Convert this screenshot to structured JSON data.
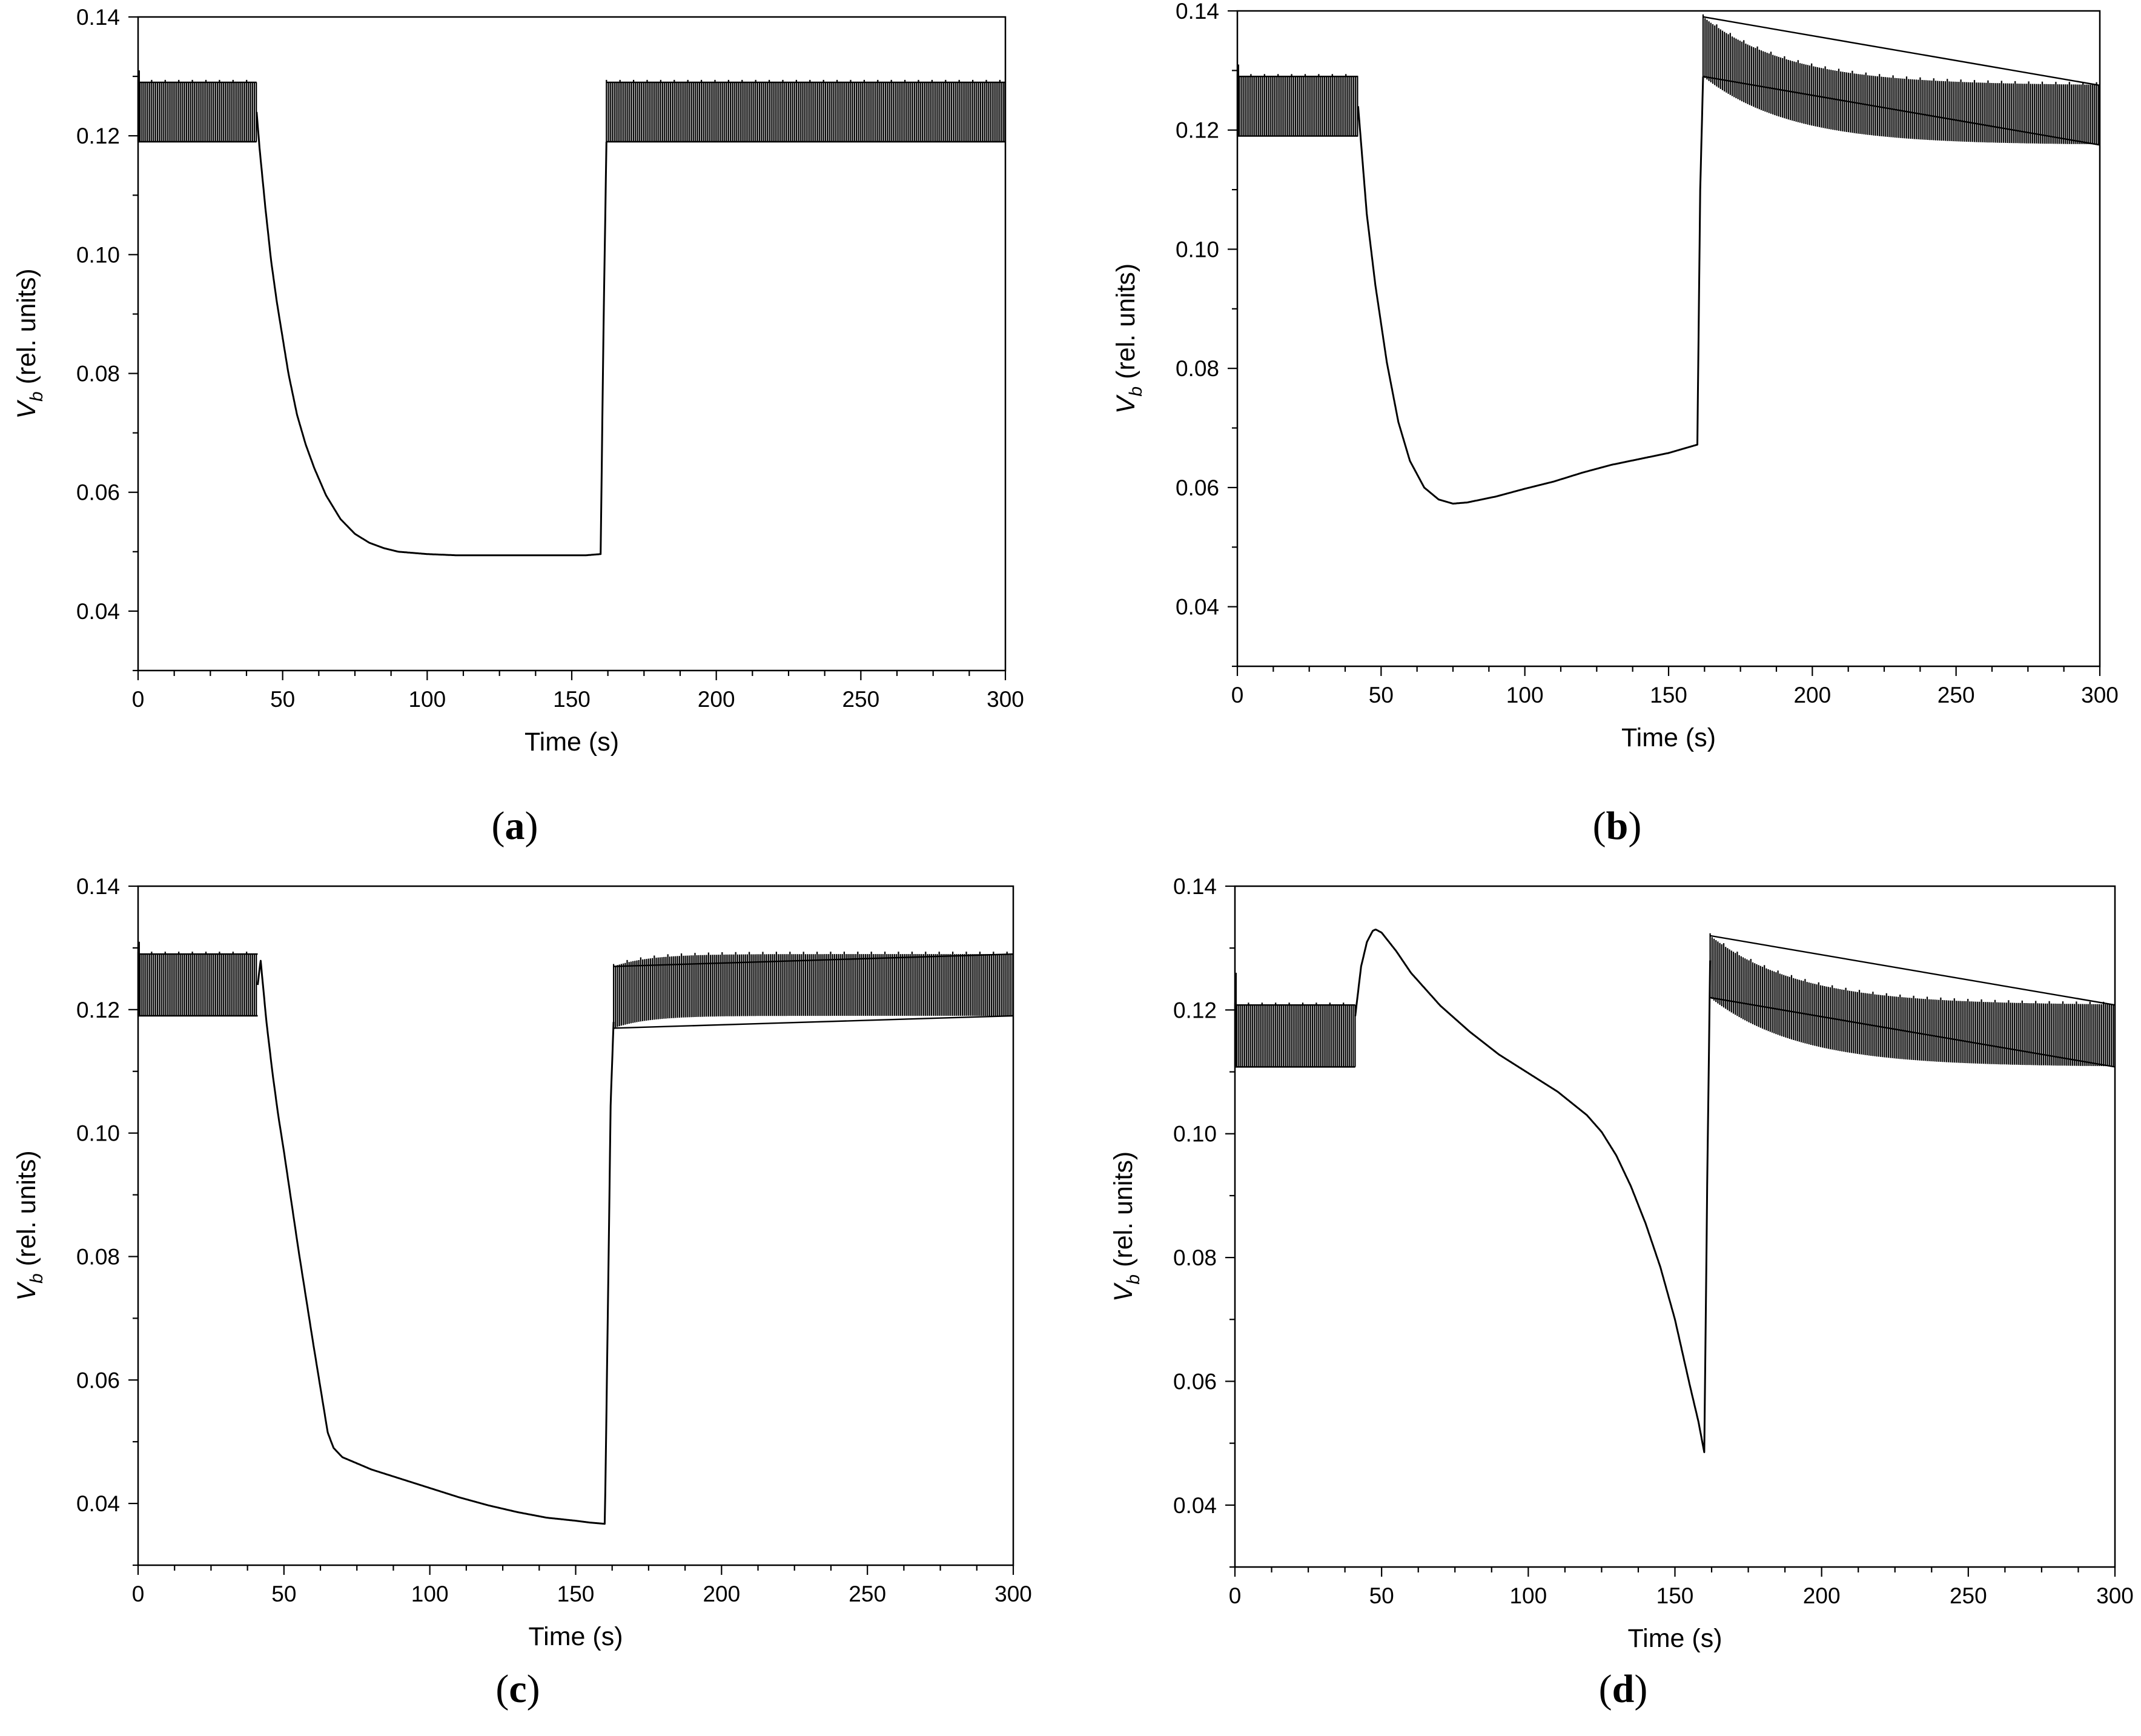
{
  "figure": {
    "panels_count": 4
  },
  "chart_data": [
    {
      "id": "a",
      "type": "line",
      "panel_label_open": "(",
      "panel_label_letter": "a",
      "panel_label_close": ")",
      "xlabel": "Time (s)",
      "ylabel_main": "V",
      "ylabel_sub": "b",
      "ylabel_rest": " (rel. units)",
      "xlim": [
        0,
        300
      ],
      "ylim": [
        0.03,
        0.14
      ],
      "xticks": [
        0,
        50,
        100,
        150,
        200,
        250,
        300
      ],
      "xtick_labels": [
        "0",
        "50",
        "100",
        "150",
        "200",
        "250",
        "300"
      ],
      "yticks": [
        0.04,
        0.06,
        0.08,
        0.1,
        0.12,
        0.14
      ],
      "ytick_labels": [
        "0.04",
        "0.06",
        "0.08",
        "0.10",
        "0.12",
        "0.14"
      ],
      "series": [
        {
          "name": "Vb",
          "oscillating_segments": [
            {
              "x_start": 0,
              "x_end": 41,
              "center": 0.124,
              "center_end": 0.124,
              "amplitude": 0.005,
              "spike_x": 0,
              "spike_y": 0.131
            },
            {
              "x_start": 162,
              "x_end": 300,
              "center": 0.124,
              "center_end": 0.124,
              "amplitude": 0.005
            }
          ],
          "smooth": {
            "x": [
              41,
              42,
              44,
              46,
              48,
              50,
              52,
              55,
              58,
              61,
              65,
              70,
              75,
              80,
              85,
              90,
              100,
              110,
              120,
              130,
              140,
              150,
              155,
              160,
              161,
              162
            ],
            "y": [
              0.124,
              0.118,
              0.108,
              0.099,
              0.092,
              0.086,
              0.08,
              0.073,
              0.068,
              0.064,
              0.0595,
              0.0555,
              0.053,
              0.0515,
              0.0506,
              0.05,
              0.0496,
              0.0494,
              0.0494,
              0.0494,
              0.0494,
              0.0494,
              0.0494,
              0.0496,
              0.088,
              0.119
            ]
          }
        }
      ]
    },
    {
      "id": "b",
      "type": "line",
      "panel_label_open": "(",
      "panel_label_letter": "b",
      "panel_label_close": ")",
      "xlabel": "Time (s)",
      "ylabel_main": "V",
      "ylabel_sub": "b",
      "ylabel_rest": " (rel. units)",
      "xlim": [
        0,
        300
      ],
      "ylim": [
        0.03,
        0.14
      ],
      "xticks": [
        0,
        50,
        100,
        150,
        200,
        250,
        300
      ],
      "xtick_labels": [
        "0",
        "50",
        "100",
        "150",
        "200",
        "250",
        "300"
      ],
      "yticks": [
        0.04,
        0.06,
        0.08,
        0.1,
        0.12,
        0.14
      ],
      "ytick_labels": [
        "0.04",
        "0.06",
        "0.08",
        "0.10",
        "0.12",
        "0.14"
      ],
      "series": [
        {
          "name": "Vb",
          "oscillating_segments": [
            {
              "x_start": 0,
              "x_end": 42,
              "center": 0.124,
              "center_end": 0.124,
              "amplitude": 0.005,
              "spike_x": 0,
              "spike_y": 0.131
            },
            {
              "x_start": 162,
              "x_end": 300,
              "center": 0.134,
              "center_end": 0.1225,
              "amplitude": 0.005,
              "decay": 30
            }
          ],
          "smooth": {
            "x": [
              42,
              43,
              45,
              48,
              52,
              56,
              60,
              65,
              70,
              75,
              80,
              90,
              100,
              110,
              120,
              130,
              140,
              150,
              155,
              160,
              161,
              162
            ],
            "y": [
              0.124,
              0.118,
              0.106,
              0.094,
              0.081,
              0.071,
              0.0645,
              0.06,
              0.058,
              0.0573,
              0.0575,
              0.0585,
              0.0598,
              0.061,
              0.0625,
              0.0638,
              0.0648,
              0.0658,
              0.0665,
              0.0672,
              0.11,
              0.129
            ]
          }
        }
      ]
    },
    {
      "id": "c",
      "type": "line",
      "panel_label_open": "(",
      "panel_label_letter": "c",
      "panel_label_close": ")",
      "xlabel": "Time (s)",
      "ylabel_main": "V",
      "ylabel_sub": "b",
      "ylabel_rest": " (rel. units)",
      "xlim": [
        0,
        300
      ],
      "ylim": [
        0.03,
        0.14
      ],
      "xticks": [
        0,
        50,
        100,
        150,
        200,
        250,
        300
      ],
      "xtick_labels": [
        "0",
        "50",
        "100",
        "150",
        "200",
        "250",
        "300"
      ],
      "yticks": [
        0.04,
        0.06,
        0.08,
        0.1,
        0.12,
        0.14
      ],
      "ytick_labels": [
        "0.04",
        "0.06",
        "0.08",
        "0.10",
        "0.12",
        "0.14"
      ],
      "series": [
        {
          "name": "Vb",
          "oscillating_segments": [
            {
              "x_start": 0,
              "x_end": 41,
              "center": 0.124,
              "center_end": 0.124,
              "amplitude": 0.005,
              "spike_x": 0,
              "spike_y": 0.131
            },
            {
              "x_start": 163,
              "x_end": 300,
              "center": 0.122,
              "center_end": 0.124,
              "amplitude": 0.005,
              "decay": 12
            }
          ],
          "smooth": {
            "x": [
              41,
              42,
              44,
              46,
              48,
              50,
              55,
              60,
              65,
              67,
              70,
              80,
              90,
              100,
              110,
              120,
              130,
              140,
              150,
              155,
              160,
              161,
              162,
              163
            ],
            "y": [
              0.124,
              0.128,
              0.118,
              0.11,
              0.103,
              0.097,
              0.081,
              0.066,
              0.0515,
              0.049,
              0.0475,
              0.0455,
              0.044,
              0.0425,
              0.041,
              0.0397,
              0.0386,
              0.0377,
              0.0372,
              0.0369,
              0.0367,
              0.07,
              0.105,
              0.118
            ]
          }
        }
      ]
    },
    {
      "id": "d",
      "type": "line",
      "panel_label_open": "(",
      "panel_label_letter": "d",
      "panel_label_close": ")",
      "xlabel": "Time (s)",
      "ylabel_main": "V",
      "ylabel_sub": "b",
      "ylabel_rest": " (rel. units)",
      "xlim": [
        0,
        300
      ],
      "ylim": [
        0.03,
        0.14
      ],
      "xticks": [
        0,
        50,
        100,
        150,
        200,
        250,
        300
      ],
      "xtick_labels": [
        "0",
        "50",
        "100",
        "150",
        "200",
        "250",
        "300"
      ],
      "yticks": [
        0.04,
        0.06,
        0.08,
        0.1,
        0.12,
        0.14
      ],
      "ytick_labels": [
        "0.04",
        "0.06",
        "0.08",
        "0.10",
        "0.12",
        "0.14"
      ],
      "series": [
        {
          "name": "Vb",
          "oscillating_segments": [
            {
              "x_start": 0,
              "x_end": 41,
              "center": 0.1158,
              "center_end": 0.1158,
              "amplitude": 0.005,
              "spike_x": 0,
              "spike_y": 0.126
            },
            {
              "x_start": 162,
              "x_end": 300,
              "center": 0.127,
              "center_end": 0.1158,
              "amplitude": 0.005,
              "decay": 30
            }
          ],
          "smooth": {
            "x": [
              41,
              43,
              45,
              47,
              48,
              50,
              55,
              60,
              70,
              80,
              90,
              100,
              110,
              120,
              125,
              130,
              135,
              140,
              145,
              150,
              155,
              158,
              160,
              161,
              162
            ],
            "y": [
              0.119,
              0.127,
              0.131,
              0.1328,
              0.133,
              0.1325,
              0.1295,
              0.126,
              0.1207,
              0.1165,
              0.1128,
              0.1098,
              0.1068,
              0.103,
              0.1003,
              0.0965,
              0.0915,
              0.0855,
              0.0785,
              0.07,
              0.0595,
              0.0535,
              0.0485,
              0.092,
              0.128
            ]
          }
        }
      ]
    }
  ]
}
